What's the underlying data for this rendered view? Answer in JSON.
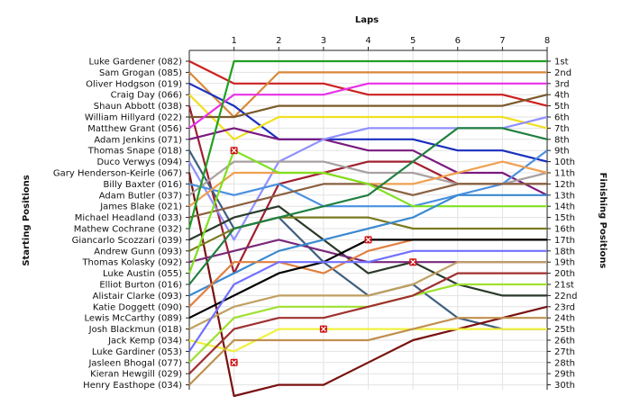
{
  "chart_data": {
    "type": "line",
    "title": "",
    "xlabel": "Laps",
    "ylabel_left": "Starting Positions",
    "ylabel_right": "Finishing Positions",
    "x": [
      0,
      1,
      2,
      3,
      4,
      5,
      6,
      7,
      8
    ],
    "x_tick_labels": [
      "1",
      "2",
      "3",
      "4",
      "5",
      "6",
      "7",
      "8"
    ],
    "finishing_labels": [
      "1st",
      "2nd",
      "3rd",
      "4th",
      "5th",
      "6th",
      "7th",
      "8th",
      "9th",
      "10th",
      "11th",
      "12th",
      "13th",
      "14th",
      "15th",
      "16th",
      "17th",
      "18th",
      "19th",
      "20th",
      "21st",
      "22nd",
      "23rd",
      "24th",
      "25th",
      "26th",
      "27th",
      "28th",
      "29th",
      "30th"
    ],
    "y_reversed": true,
    "ylim": [
      1,
      30
    ],
    "grid": true,
    "series": [
      {
        "name": "Luke Gardener (082)",
        "color": "#cc2020",
        "positions": [
          1,
          3,
          3,
          3,
          4,
          4,
          4,
          4,
          5
        ]
      },
      {
        "name": "Sam Grogan (085)",
        "color": "#d8893a",
        "positions": [
          2,
          6,
          2,
          2,
          2,
          2,
          2,
          2,
          2
        ]
      },
      {
        "name": "Oliver Hodgson (019)",
        "color": "#1a2fbf",
        "positions": [
          3,
          5,
          8,
          8,
          8,
          8,
          9,
          9,
          10
        ]
      },
      {
        "name": "Craig Day (066)",
        "color": "#f0e020",
        "positions": [
          4,
          8,
          6,
          6,
          6,
          6,
          6,
          6,
          7
        ]
      },
      {
        "name": "Shaun Abbott (038)",
        "color": "#a02030",
        "positions": [
          5,
          20,
          12,
          11,
          10,
          10,
          12,
          12,
          12
        ]
      },
      {
        "name": "William Hillyard (022)",
        "color": "#7a5a2a",
        "positions": [
          6,
          6,
          5,
          5,
          5,
          5,
          5,
          5,
          4
        ]
      },
      {
        "name": "Matthew Grant (056)",
        "color": "#e830e8",
        "positions": [
          7,
          4,
          4,
          4,
          3,
          3,
          3,
          3,
          3
        ]
      },
      {
        "name": "Adam Jenkins (071)",
        "color": "#7a1a80",
        "positions": [
          8,
          7,
          8,
          8,
          9,
          9,
          11,
          11,
          13
        ]
      },
      {
        "name": "Thomas Snape (018)",
        "color": "#3f5f7f",
        "positions": [
          9,
          16,
          15,
          19,
          22,
          21,
          24,
          25,
          25
        ]
      },
      {
        "name": "Duco Verwys (094)",
        "color": "#9090ff",
        "positions": [
          10,
          17,
          10,
          8,
          7,
          7,
          7,
          7,
          6
        ]
      },
      {
        "name": "Gary Henderson-Keirle (067)",
        "color": "#7a1010",
        "positions": [
          11,
          31,
          30,
          30,
          28,
          26,
          25,
          24,
          23
        ]
      },
      {
        "name": "Billy Baxter (016)",
        "color": "#4a90e0",
        "positions": [
          12,
          13,
          12,
          14,
          14,
          14,
          13,
          12,
          9
        ]
      },
      {
        "name": "Adam Butler (037)",
        "color": "#a8a0a0",
        "positions": [
          13,
          10,
          10,
          10,
          11,
          11,
          12,
          12,
          11
        ]
      },
      {
        "name": "James Blake (021)",
        "color": "#f0a050",
        "positions": [
          14,
          11,
          11,
          11,
          12,
          12,
          11,
          10,
          11
        ]
      },
      {
        "name": "Michael Headland (033)",
        "color": "#8a6040",
        "positions": [
          15,
          14,
          13,
          12,
          12,
          13,
          12,
          12,
          12
        ]
      },
      {
        "name": "Mathew Cochrane (032)",
        "color": "#20a020",
        "positions": [
          16,
          1,
          1,
          1,
          1,
          1,
          1,
          1,
          1
        ]
      },
      {
        "name": "Giancarlo Scozzari (039)",
        "color": "#2a3a2a",
        "positions": [
          17,
          15,
          14,
          17,
          20,
          19,
          21,
          22,
          22
        ]
      },
      {
        "name": "Andrew Gunn (093)",
        "color": "#7a7a20",
        "positions": [
          18,
          16,
          15,
          15,
          15,
          16,
          16,
          16,
          16
        ]
      },
      {
        "name": "Thomas Kolasky (092)",
        "color": "#7a2a7a",
        "positions": [
          19,
          18,
          17,
          18,
          19,
          19,
          19,
          19,
          19
        ]
      },
      {
        "name": "Luke Austin (055)",
        "color": "#80e020",
        "positions": [
          20,
          9,
          11,
          11,
          12,
          14,
          14,
          14,
          14
        ]
      },
      {
        "name": "Elliot Burton (016)",
        "color": "#208040",
        "positions": [
          21,
          16,
          15,
          14,
          13,
          10,
          7,
          7,
          8
        ]
      },
      {
        "name": "Alistair Clarke (093)",
        "color": "#3a8ad0",
        "positions": [
          22,
          20,
          18,
          17,
          16,
          15,
          13,
          13,
          13
        ]
      },
      {
        "name": "Katie Doggett (090)",
        "color": "#e08040",
        "positions": [
          23,
          19,
          19,
          20,
          18,
          17,
          17,
          17,
          17
        ]
      },
      {
        "name": "Lewis McCarthy (089)",
        "color": "#000000",
        "positions": [
          24,
          22,
          20,
          19,
          17,
          17,
          17,
          17,
          17
        ]
      },
      {
        "name": "Josh Blackmun (018)",
        "color": "#c0a060",
        "positions": [
          25,
          23,
          22,
          22,
          22,
          21,
          19,
          19,
          19
        ]
      },
      {
        "name": "Jack Kemp (034)",
        "color": "#f0f040",
        "positions": [
          26,
          27,
          25,
          25,
          25,
          25,
          25,
          25,
          25
        ]
      },
      {
        "name": "Luke Gardiner (053)",
        "color": "#7070ff",
        "positions": [
          27,
          21,
          19,
          19,
          19,
          18,
          18,
          18,
          18
        ]
      },
      {
        "name": "Jasleen Bhogal (077)",
        "color": "#a0e030",
        "positions": [
          28,
          24,
          23,
          23,
          23,
          22,
          21,
          21,
          21
        ]
      },
      {
        "name": "Kieran Hewgill (029)",
        "color": "#a03030",
        "positions": [
          29,
          25,
          24,
          24,
          23,
          22,
          20,
          20,
          20
        ]
      },
      {
        "name": "Henry Easthope (034)",
        "color": "#c09050",
        "positions": [
          30,
          26,
          26,
          26,
          26,
          25,
          24,
          24,
          24
        ]
      }
    ],
    "retirements": [
      {
        "lap": 1,
        "position": 9
      },
      {
        "lap": 1,
        "position": 28
      },
      {
        "lap": 3,
        "position": 25
      },
      {
        "lap": 4,
        "position": 17
      },
      {
        "lap": 5,
        "position": 19
      }
    ]
  }
}
